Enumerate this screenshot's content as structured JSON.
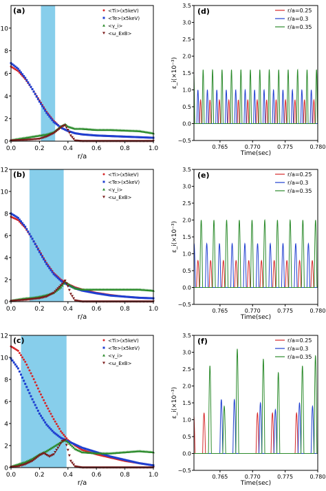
{
  "chart_data": [
    {
      "panel": "(a)",
      "type": "scatter",
      "xlabel": "r/a",
      "xlim": [
        0,
        1
      ],
      "ylim": [
        0,
        12
      ],
      "xticks": [
        "0.0",
        "0.2",
        "0.4",
        "0.6",
        "0.8",
        "1.0"
      ],
      "yticks": [
        "0",
        "2",
        "4",
        "6",
        "8",
        "10"
      ],
      "shaded_region": [
        0.21,
        0.31
      ],
      "legend_position": "top-right",
      "series": [
        {
          "name": "<Ti>(x5keV)",
          "color": "#d62728",
          "marker": "dot",
          "x": [
            0.0,
            0.05,
            0.1,
            0.15,
            0.2,
            0.25,
            0.3,
            0.35,
            0.4,
            0.45,
            0.5,
            0.6,
            0.7,
            0.8,
            0.9,
            1.0
          ],
          "y": [
            6.6,
            6.2,
            5.5,
            4.6,
            3.6,
            2.6,
            1.8,
            1.2,
            0.9,
            0.7,
            0.6,
            0.5,
            0.45,
            0.4,
            0.35,
            0.3
          ]
        },
        {
          "name": "<Te>(x5keV)",
          "color": "#1f3fd0",
          "marker": "square",
          "x": [
            0.0,
            0.05,
            0.1,
            0.15,
            0.2,
            0.25,
            0.3,
            0.35,
            0.4,
            0.45,
            0.5,
            0.6,
            0.7,
            0.8,
            0.9,
            1.0
          ],
          "y": [
            6.9,
            6.4,
            5.6,
            4.6,
            3.5,
            2.5,
            1.7,
            1.2,
            0.9,
            0.7,
            0.6,
            0.5,
            0.45,
            0.4,
            0.35,
            0.3
          ]
        },
        {
          "name": "<γ_i>",
          "color": "#2a8a2a",
          "marker": "triangle",
          "x": [
            0.0,
            0.05,
            0.1,
            0.15,
            0.2,
            0.25,
            0.3,
            0.35,
            0.38,
            0.4,
            0.45,
            0.5,
            0.6,
            0.7,
            0.8,
            0.9,
            1.0
          ],
          "y": [
            0.1,
            0.2,
            0.3,
            0.4,
            0.5,
            0.6,
            0.8,
            1.3,
            1.5,
            1.3,
            1.1,
            1.1,
            1.0,
            1.0,
            0.95,
            0.9,
            0.7
          ]
        },
        {
          "name": "<ω_ExB>",
          "color": "#7a1a1a",
          "marker": "triangle-down",
          "x": [
            0.0,
            0.1,
            0.2,
            0.25,
            0.3,
            0.33,
            0.36,
            0.38,
            0.4,
            0.42,
            0.45,
            0.5,
            0.6,
            0.7,
            0.8,
            0.9,
            1.0
          ],
          "y": [
            0.05,
            0.1,
            0.2,
            0.4,
            0.7,
            1.0,
            1.3,
            1.4,
            1.0,
            0.5,
            0.05,
            0.0,
            0.0,
            0.0,
            0.0,
            0.0,
            0.0
          ]
        }
      ]
    },
    {
      "panel": "(d)",
      "type": "line",
      "xlabel": "Time(sec)",
      "ylabel": "ε_i(×10⁻³)",
      "xlim": [
        0.761,
        0.78
      ],
      "ylim": [
        -0.5,
        3.5
      ],
      "xticks": [
        "0.765",
        "0.770",
        "0.775",
        "0.780"
      ],
      "yticks": [
        "−0.5",
        "0.0",
        "0.5",
        "1.0",
        "1.5",
        "2.0",
        "2.5",
        "3.0",
        "3.5"
      ],
      "legend_position": "top-right",
      "series": [
        {
          "name": "r/a=0.25",
          "color": "#d62728",
          "amplitude": 0.7,
          "period": 0.00145,
          "phase": 0.0006
        },
        {
          "name": "r/a=0.3",
          "color": "#1f3fd0",
          "amplitude": 1.0,
          "period": 0.00145,
          "phase": 0.0002
        },
        {
          "name": "r/a=0.35",
          "color": "#2a8a2a",
          "amplitude": 1.6,
          "period": 0.00145,
          "phase": 0.001
        }
      ]
    },
    {
      "panel": "(b)",
      "type": "scatter",
      "xlabel": "r/a",
      "xlim": [
        0,
        1
      ],
      "ylim": [
        0,
        12
      ],
      "xticks": [
        "0.0",
        "0.2",
        "0.4",
        "0.6",
        "0.8",
        "1.0"
      ],
      "yticks": [
        "0",
        "2",
        "4",
        "6",
        "8",
        "10",
        "12"
      ],
      "shaded_region": [
        0.13,
        0.37
      ],
      "legend_position": "top-right",
      "series": [
        {
          "name": "<Ti>(x5keV)",
          "color": "#d62728",
          "marker": "dot",
          "x": [
            0.0,
            0.05,
            0.1,
            0.15,
            0.2,
            0.25,
            0.3,
            0.35,
            0.4,
            0.45,
            0.5,
            0.6,
            0.7,
            0.8,
            0.9,
            1.0
          ],
          "y": [
            7.7,
            7.4,
            6.7,
            5.7,
            4.6,
            3.5,
            2.6,
            2.0,
            1.6,
            1.3,
            1.1,
            0.8,
            0.6,
            0.45,
            0.35,
            0.3
          ]
        },
        {
          "name": "<Te>(x5keV)",
          "color": "#1f3fd0",
          "marker": "square",
          "x": [
            0.0,
            0.05,
            0.1,
            0.15,
            0.2,
            0.25,
            0.3,
            0.35,
            0.4,
            0.45,
            0.5,
            0.6,
            0.7,
            0.8,
            0.9,
            1.0
          ],
          "y": [
            8.0,
            7.6,
            6.8,
            5.7,
            4.5,
            3.4,
            2.5,
            1.9,
            1.5,
            1.2,
            1.0,
            0.75,
            0.55,
            0.45,
            0.35,
            0.3
          ]
        },
        {
          "name": "<γ_i>",
          "color": "#2a8a2a",
          "marker": "triangle",
          "x": [
            0.0,
            0.05,
            0.1,
            0.15,
            0.2,
            0.25,
            0.3,
            0.35,
            0.38,
            0.4,
            0.45,
            0.5,
            0.6,
            0.7,
            0.8,
            0.9,
            1.0
          ],
          "y": [
            0.1,
            0.2,
            0.3,
            0.35,
            0.45,
            0.6,
            0.8,
            1.3,
            1.8,
            1.6,
            1.2,
            1.1,
            1.1,
            1.1,
            1.1,
            1.1,
            1.0
          ]
        },
        {
          "name": "<ω_ExB>",
          "color": "#7a1a1a",
          "marker": "triangle-down",
          "x": [
            0.0,
            0.1,
            0.2,
            0.25,
            0.3,
            0.33,
            0.36,
            0.38,
            0.4,
            0.42,
            0.45,
            0.5,
            0.6,
            0.7,
            0.8,
            0.9,
            1.0
          ],
          "y": [
            0.05,
            0.15,
            0.3,
            0.45,
            0.8,
            1.2,
            1.6,
            1.9,
            1.4,
            0.7,
            0.1,
            0.0,
            0.0,
            0.0,
            0.0,
            0.0,
            0.0
          ]
        }
      ]
    },
    {
      "panel": "(e)",
      "type": "line",
      "xlabel": "Time(sec)",
      "ylabel": "ε_i(×10⁻³)",
      "xlim": [
        0.761,
        0.78
      ],
      "ylim": [
        -0.5,
        3.5
      ],
      "xticks": [
        "0.765",
        "0.770",
        "0.775",
        "0.780"
      ],
      "yticks": [
        "−0.5",
        "0.0",
        "0.5",
        "1.0",
        "1.5",
        "2.0",
        "2.5",
        "3.0",
        "3.5"
      ],
      "legend_position": "top-right",
      "series": [
        {
          "name": "r/a=0.25",
          "color": "#d62728",
          "amplitude": 0.8,
          "period": 0.00195,
          "phase": 0.0009
        },
        {
          "name": "r/a=0.3",
          "color": "#1f3fd0",
          "amplitude": 1.3,
          "period": 0.00195,
          "phase": 0.0003
        },
        {
          "name": "r/a=0.35",
          "color": "#2a8a2a",
          "amplitude": 2.0,
          "period": 0.00195,
          "phase": 0.0014
        }
      ]
    },
    {
      "panel": "(c)",
      "type": "scatter",
      "xlabel": "r/a",
      "xlim": [
        0,
        1
      ],
      "ylim": [
        0,
        12
      ],
      "xticks": [
        "0.0",
        "0.2",
        "0.4",
        "0.6",
        "0.8",
        "1.0"
      ],
      "yticks": [
        "0",
        "2",
        "4",
        "6",
        "8",
        "10",
        "12"
      ],
      "shaded_region": [
        0.07,
        0.39
      ],
      "legend_position": "top-right",
      "series": [
        {
          "name": "<Ti>(x5keV)",
          "color": "#d62728",
          "marker": "dot",
          "x": [
            0.0,
            0.05,
            0.1,
            0.15,
            0.2,
            0.25,
            0.3,
            0.35,
            0.4,
            0.45,
            0.5,
            0.6,
            0.7,
            0.8,
            0.9,
            1.0
          ],
          "y": [
            11.0,
            10.6,
            9.6,
            8.3,
            6.9,
            5.6,
            4.4,
            3.3,
            2.5,
            2.0,
            1.6,
            1.2,
            0.9,
            0.6,
            0.4,
            0.2
          ]
        },
        {
          "name": "<Te>(x5keV)",
          "color": "#1f3fd0",
          "marker": "square",
          "x": [
            0.0,
            0.05,
            0.1,
            0.15,
            0.2,
            0.25,
            0.3,
            0.35,
            0.4,
            0.45,
            0.5,
            0.6,
            0.7,
            0.8,
            0.9,
            1.0
          ],
          "y": [
            9.9,
            9.0,
            7.6,
            6.2,
            4.9,
            3.9,
            3.2,
            2.7,
            2.4,
            2.1,
            1.8,
            1.4,
            1.0,
            0.7,
            0.4,
            0.2
          ]
        },
        {
          "name": "<γ_i>",
          "color": "#2a8a2a",
          "marker": "triangle",
          "x": [
            0.0,
            0.05,
            0.1,
            0.15,
            0.2,
            0.25,
            0.3,
            0.35,
            0.38,
            0.4,
            0.45,
            0.5,
            0.6,
            0.7,
            0.8,
            0.9,
            1.0
          ],
          "y": [
            0.1,
            0.3,
            0.5,
            0.8,
            1.2,
            1.5,
            1.9,
            2.3,
            2.5,
            2.3,
            1.7,
            1.4,
            1.3,
            1.3,
            1.4,
            1.5,
            1.4
          ]
        },
        {
          "name": "<ω_ExB>",
          "color": "#7a1a1a",
          "marker": "triangle-down",
          "x": [
            0.0,
            0.05,
            0.1,
            0.15,
            0.2,
            0.23,
            0.27,
            0.3,
            0.33,
            0.36,
            0.38,
            0.4,
            0.42,
            0.45,
            0.5,
            0.6,
            0.7,
            0.8,
            0.9,
            1.0
          ],
          "y": [
            0.05,
            0.1,
            0.3,
            0.6,
            1.1,
            1.3,
            1.0,
            1.2,
            1.8,
            2.4,
            2.5,
            1.6,
            0.6,
            0.1,
            0.0,
            0.0,
            0.0,
            0.0,
            0.0,
            0.0
          ]
        }
      ]
    },
    {
      "panel": "(f)",
      "type": "line",
      "xlabel": "Time(sec)",
      "ylabel": "ε_i(×10⁻³)",
      "xlim": [
        0.761,
        0.78
      ],
      "ylim": [
        -0.5,
        3.5
      ],
      "xticks": [
        "0.765",
        "0.770",
        "0.775",
        "0.780"
      ],
      "yticks": [
        "−0.5",
        "0.0",
        "0.5",
        "1.0",
        "1.5",
        "2.0",
        "2.5",
        "3.0",
        "3.5"
      ],
      "legend_position": "top-right",
      "bursts": [
        {
          "t": 0.7614,
          "r025": 1.2,
          "r03": 0.0,
          "r035": 0.0
        },
        {
          "t": 0.763,
          "r025": 1.2,
          "r03": 0.0,
          "r035": 2.6
        },
        {
          "t": 0.7652,
          "r025": 0.0,
          "r03": 1.6,
          "r035": 1.4
        },
        {
          "t": 0.7672,
          "r025": 0.0,
          "r03": 1.6,
          "r035": 3.1
        },
        {
          "t": 0.7712,
          "r025": 1.2,
          "r03": 1.5,
          "r035": 2.8
        },
        {
          "t": 0.7735,
          "r025": 1.2,
          "r03": 1.3,
          "r035": 2.4
        },
        {
          "t": 0.7772,
          "r025": 1.2,
          "r03": 1.5,
          "r035": 2.6
        },
        {
          "t": 0.7792,
          "r025": 0.0,
          "r03": 1.4,
          "r035": 2.9
        }
      ],
      "series": [
        {
          "name": "r/a=0.25",
          "color": "#d62728"
        },
        {
          "name": "r/a=0.3",
          "color": "#1f3fd0"
        },
        {
          "name": "r/a=0.35",
          "color": "#2a8a2a"
        }
      ]
    }
  ]
}
